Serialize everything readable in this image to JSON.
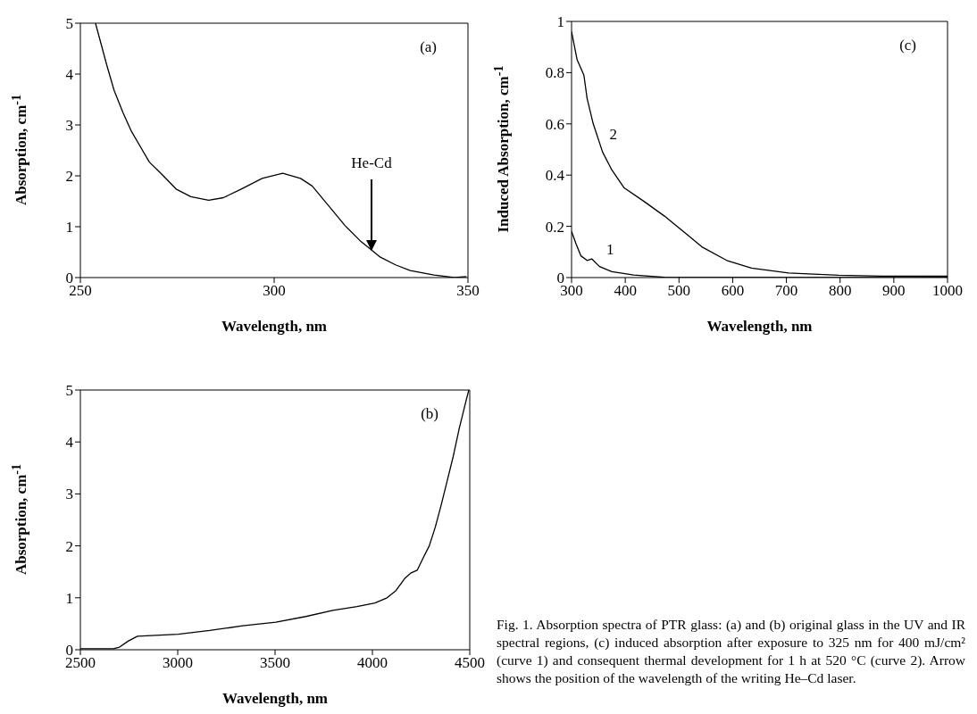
{
  "chart_data": [
    {
      "type": "line",
      "xlabel": "Wavelength, nm",
      "ylabel": "Absorption, cm$^{-1}$",
      "xlim": [
        250,
        350
      ],
      "ylim": [
        0,
        5
      ],
      "xticks": [
        250,
        300,
        350
      ],
      "yticks": [
        0,
        1,
        2,
        3,
        4,
        5
      ],
      "grid": false,
      "legend": false,
      "marker": "none",
      "line_style": "solid",
      "annotations": [
        "(a)",
        "He-Cd"
      ],
      "series": [
        {
          "color": "#000000",
          "x": [
            253.9,
            256.8,
            258.7,
            261,
            263.2,
            265.5,
            267.8,
            270.9,
            274.7,
            278.5,
            283.1,
            286.9,
            291.5,
            296.9,
            302.2,
            306.8,
            309.8,
            314.4,
            318.3,
            322.1,
            324.8,
            327.4,
            331.3,
            335.1,
            341.2,
            346.5,
            349.6
          ],
          "values": [
            5,
            4.18,
            3.68,
            3.24,
            2.87,
            2.57,
            2.27,
            2.04,
            1.74,
            1.59,
            1.52,
            1.57,
            1.74,
            1.95,
            2.05,
            1.95,
            1.8,
            1.38,
            1.02,
            0.73,
            0.56,
            0.4,
            0.25,
            0.14,
            0.05,
            0,
            0.02
          ]
        }
      ]
    },
    {
      "type": "line",
      "xlabel": "Wavelength, nm",
      "ylabel": "Induced Absorption, cm$^{-1}$",
      "xlim": [
        300,
        1000
      ],
      "ylim": [
        0,
        1
      ],
      "xticks": [
        300,
        400,
        500,
        600,
        700,
        800,
        900,
        1000
      ],
      "yticks": [
        0,
        0.2,
        0.4,
        0.6,
        0.8,
        1
      ],
      "grid": false,
      "legend": false,
      "marker": "none",
      "line_style": "solid",
      "annotations": [
        "(c)"
      ],
      "series": [
        {
          "name": "1",
          "color": "#000000",
          "x": [
            300,
            308.7,
            317.3,
            328.9,
            337.6,
            352,
            375,
            415.5,
            473,
            531,
            704,
            1000
          ],
          "values": [
            0.18,
            0.13,
            0.085,
            0.067,
            0.073,
            0.043,
            0.023,
            0.01,
            0.001,
            0,
            0,
            0.001
          ]
        },
        {
          "name": "2",
          "color": "#000000",
          "x": [
            300,
            310.4,
            323,
            328.9,
            340.4,
            357.8,
            375,
            398,
            433,
            473,
            508,
            542.6,
            588.9,
            635,
            704,
            797,
            877.7,
            1000
          ],
          "values": [
            0.96,
            0.85,
            0.79,
            0.7,
            0.6,
            0.49,
            0.42,
            0.35,
            0.3,
            0.24,
            0.18,
            0.12,
            0.067,
            0.037,
            0.018,
            0.009,
            0.006,
            0.006
          ]
        }
      ]
    },
    {
      "type": "line",
      "xlabel": "Wavelength, nm",
      "ylabel": "Absorption, cm$^{-1}$",
      "xlim": [
        2500,
        4500
      ],
      "ylim": [
        0,
        5
      ],
      "xticks": [
        2500,
        3000,
        3500,
        4000,
        4500
      ],
      "yticks": [
        0,
        1,
        2,
        3,
        4,
        5
      ],
      "grid": false,
      "legend": false,
      "marker": "none",
      "line_style": "solid",
      "annotations": [
        "(b)",
        "Fig. 1.  Absorption spectra of PTR glass:  (a) and (b) original glass in the UV and IR spectral regions, (c) induced absorption after exposure to 325 nm for 400 mJ/cm² (curve 1) and consequent thermal development for 1 h at 520 °C (curve 2).  Arrow shows the position of the wavelength of the writing He–Cd laser."
      ],
      "series": [
        {
          "color": "#000000",
          "x": [
            2500,
            2670,
            2701,
            2747,
            2793,
            2840,
            3002,
            3164,
            3334,
            3504,
            3658,
            3797,
            3921,
            4013,
            4075,
            4121,
            4168,
            4199,
            4230,
            4261,
            4292,
            4323,
            4353,
            4384,
            4415,
            4446,
            4477,
            4495
          ],
          "values": [
            0.02,
            0.02,
            0.05,
            0.17,
            0.26,
            0.27,
            0.3,
            0.37,
            0.46,
            0.53,
            0.64,
            0.76,
            0.83,
            0.9,
            1,
            1.14,
            1.38,
            1.48,
            1.53,
            1.77,
            2,
            2.36,
            2.78,
            3.25,
            3.72,
            4.26,
            4.73,
            5
          ]
        }
      ]
    }
  ]
}
